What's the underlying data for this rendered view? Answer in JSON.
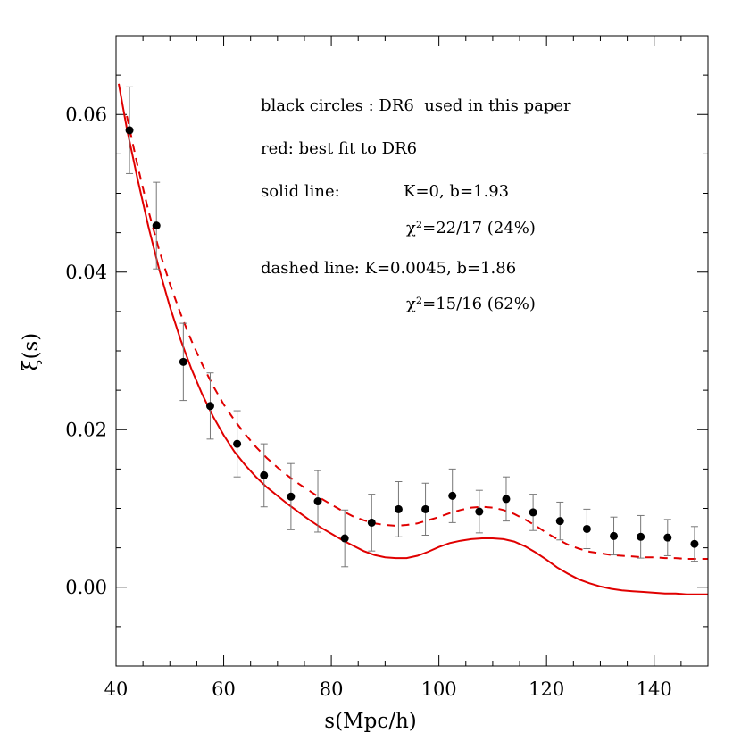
{
  "chart_data": {
    "type": "scatter",
    "xlabel": "s(Mpc/h)",
    "ylabel": "ξ(s)",
    "xlim": [
      40,
      150
    ],
    "ylim": [
      -0.01,
      0.07
    ],
    "x_ticks": [
      40,
      60,
      80,
      100,
      120,
      140
    ],
    "x_tick_labels": [
      "40",
      "60",
      "80",
      "100",
      "120",
      "140"
    ],
    "y_ticks": [
      0.0,
      0.02,
      0.04,
      0.06
    ],
    "y_tick_labels": [
      "0.00",
      "0.02",
      "0.04",
      "0.06"
    ],
    "grid": false,
    "annotations": [
      "black circles : DR6  used in this paper",
      "red: best fit to DR6",
      "solid line:",
      "K=0, b=1.93",
      "χ²=22/17 (24%)",
      "dashed line: K=0.0045, b=1.86",
      "χ²=15/16 (62%)"
    ],
    "series": [
      {
        "kind": "points",
        "color": "#000000",
        "error_bar_color": "#777777",
        "x": [
          42.5,
          47.5,
          52.5,
          57.5,
          62.5,
          67.5,
          72.5,
          77.5,
          82.5,
          87.5,
          92.5,
          97.5,
          102.5,
          107.5,
          112.5,
          117.5,
          122.5,
          127.5,
          132.5,
          137.5,
          142.5,
          147.5
        ],
        "y": [
          0.058,
          0.0459,
          0.0286,
          0.023,
          0.0182,
          0.0142,
          0.0115,
          0.0109,
          0.0062,
          0.0082,
          0.0099,
          0.0099,
          0.0116,
          0.0096,
          0.0112,
          0.0095,
          0.0084,
          0.0074,
          0.0065,
          0.0064,
          0.0063,
          0.0055
        ],
        "yerr": [
          0.0055,
          0.0055,
          0.0049,
          0.0042,
          0.0042,
          0.004,
          0.0042,
          0.0039,
          0.0036,
          0.0036,
          0.0035,
          0.0033,
          0.0034,
          0.0027,
          0.0028,
          0.0023,
          0.0024,
          0.0025,
          0.0024,
          0.0027,
          0.0023,
          0.0022
        ]
      },
      {
        "kind": "line",
        "style": "solid",
        "color": "#e00000",
        "x": [
          40.5,
          42,
          44,
          46,
          48,
          50,
          52,
          54,
          56,
          58,
          60,
          62,
          64,
          66,
          68,
          70,
          72,
          74,
          76,
          78,
          80,
          82,
          84,
          86,
          88,
          90,
          92,
          94,
          96,
          98,
          100,
          102,
          104,
          106,
          108,
          110,
          112,
          114,
          116,
          118,
          120,
          122,
          124,
          126,
          128,
          130,
          132,
          134,
          136,
          138,
          140,
          142,
          144,
          146,
          148,
          150
        ],
        "y": [
          0.0639,
          0.0582,
          0.0518,
          0.0458,
          0.0404,
          0.0356,
          0.0314,
          0.0277,
          0.0245,
          0.0217,
          0.0193,
          0.0172,
          0.0155,
          0.014,
          0.0127,
          0.0116,
          0.0105,
          0.0095,
          0.0085,
          0.0076,
          0.0068,
          0.006,
          0.0053,
          0.0046,
          0.0041,
          0.0038,
          0.0037,
          0.0037,
          0.004,
          0.0045,
          0.0051,
          0.0056,
          0.0059,
          0.0061,
          0.0062,
          0.0062,
          0.0061,
          0.0058,
          0.0052,
          0.0044,
          0.0035,
          0.0025,
          0.0017,
          0.001,
          0.0005,
          0.0001,
          -0.0002,
          -0.0004,
          -0.0005,
          -0.0006,
          -0.0007,
          -0.0008,
          -0.0008,
          -0.0009,
          -0.0009,
          -0.0009
        ]
      },
      {
        "kind": "line",
        "style": "dashed",
        "color": "#e00000",
        "x": [
          42,
          44,
          46,
          48,
          50,
          52,
          54,
          56,
          58,
          60,
          62,
          64,
          66,
          68,
          70,
          72,
          74,
          76,
          78,
          80,
          82,
          84,
          86,
          88,
          90,
          92,
          94,
          96,
          98,
          100,
          102,
          104,
          106,
          108,
          110,
          112,
          114,
          116,
          118,
          120,
          122,
          124,
          126,
          128,
          130,
          132,
          134,
          136,
          138,
          140,
          142,
          144,
          146,
          148,
          150
        ],
        "y": [
          0.0598,
          0.0535,
          0.0478,
          0.0428,
          0.0385,
          0.0347,
          0.0313,
          0.0283,
          0.0256,
          0.0232,
          0.0212,
          0.0194,
          0.0178,
          0.0164,
          0.0152,
          0.0141,
          0.0131,
          0.0122,
          0.0113,
          0.0105,
          0.0097,
          0.009,
          0.0085,
          0.0081,
          0.0079,
          0.0078,
          0.0079,
          0.0081,
          0.0085,
          0.0089,
          0.0094,
          0.0098,
          0.0101,
          0.0102,
          0.0101,
          0.0098,
          0.0093,
          0.0086,
          0.0078,
          0.0069,
          0.0061,
          0.0054,
          0.0049,
          0.0045,
          0.0043,
          0.0041,
          0.004,
          0.0039,
          0.0038,
          0.0038,
          0.0037,
          0.0037,
          0.0036,
          0.0036,
          0.0036
        ]
      }
    ]
  }
}
